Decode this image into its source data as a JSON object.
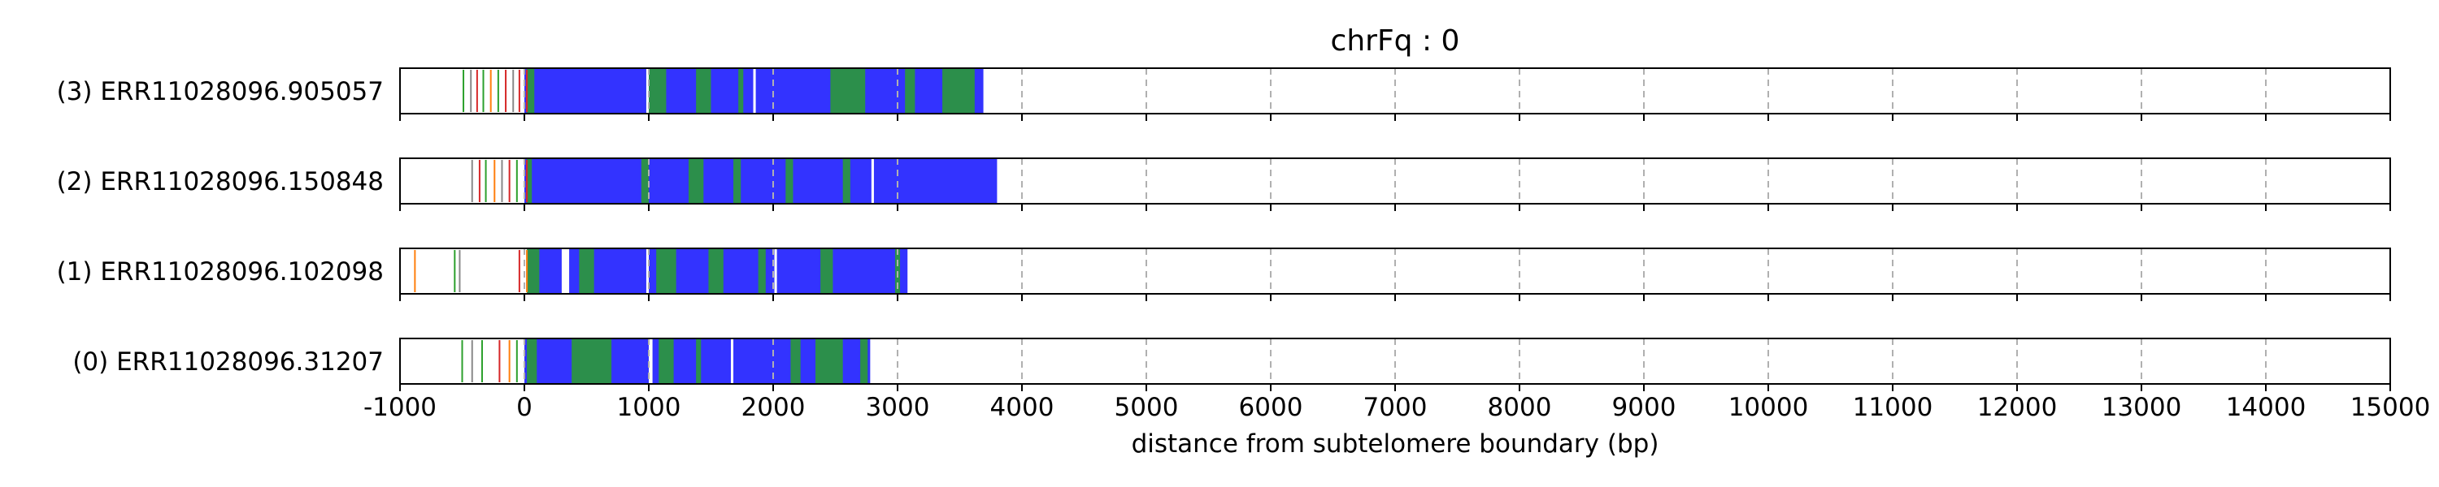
{
  "chart_data": {
    "type": "read-track",
    "title": "chrFq : 0",
    "xlabel": "distance from subtelomere boundary (bp)",
    "xlim": [
      -1000,
      15000
    ],
    "xticks": [
      -1000,
      0,
      1000,
      2000,
      3000,
      4000,
      5000,
      6000,
      7000,
      8000,
      9000,
      10000,
      11000,
      12000,
      13000,
      14000,
      15000
    ],
    "grid": "vertical dashed",
    "colors": {
      "blue": "#3333ff",
      "green": "#2ca02c",
      "red": "#d62728",
      "orange": "#ff7f0e",
      "gray": "#888888"
    },
    "reads": [
      {
        "label": "(3) ERR11028096.905057",
        "end": 3690,
        "marks": [
          {
            "x": -490,
            "color": "green"
          },
          {
            "x": -430,
            "color": "gray"
          },
          {
            "x": -380,
            "color": "red"
          },
          {
            "x": -330,
            "color": "green"
          },
          {
            "x": -270,
            "color": "orange"
          },
          {
            "x": -210,
            "color": "green"
          },
          {
            "x": -150,
            "color": "red"
          },
          {
            "x": -90,
            "color": "gray"
          },
          {
            "x": -40,
            "color": "red"
          },
          {
            "x": 20,
            "color": "red"
          }
        ],
        "green_bands": [
          [
            20,
            80
          ],
          [
            980,
            1140
          ],
          [
            1380,
            1500
          ],
          [
            1720,
            1760
          ],
          [
            2460,
            2740
          ],
          [
            3060,
            3140
          ],
          [
            3360,
            3620
          ]
        ],
        "white_gaps": [
          [
            980,
            1000
          ],
          [
            1840,
            1860
          ]
        ]
      },
      {
        "label": "(2) ERR11028096.150848",
        "end": 3800,
        "marks": [
          {
            "x": -420,
            "color": "gray"
          },
          {
            "x": -360,
            "color": "red"
          },
          {
            "x": -310,
            "color": "green"
          },
          {
            "x": -240,
            "color": "orange"
          },
          {
            "x": -180,
            "color": "gray"
          },
          {
            "x": -120,
            "color": "red"
          },
          {
            "x": -60,
            "color": "green"
          },
          {
            "x": 20,
            "color": "red"
          }
        ],
        "green_bands": [
          [
            20,
            60
          ],
          [
            940,
            1000
          ],
          [
            1320,
            1440
          ],
          [
            1680,
            1740
          ],
          [
            2100,
            2160
          ],
          [
            2560,
            2620
          ]
        ],
        "white_gaps": [
          [
            2790,
            2810
          ]
        ]
      },
      {
        "label": "(1) ERR11028096.102098",
        "end": 3080,
        "marks": [
          {
            "x": -880,
            "color": "orange"
          },
          {
            "x": -560,
            "color": "green"
          },
          {
            "x": -520,
            "color": "gray"
          },
          {
            "x": -40,
            "color": "red"
          },
          {
            "x": 20,
            "color": "orange"
          }
        ],
        "green_bands": [
          [
            20,
            120
          ],
          [
            440,
            560
          ],
          [
            1060,
            1220
          ],
          [
            1480,
            1600
          ],
          [
            1880,
            1940
          ],
          [
            2380,
            2480
          ],
          [
            2980,
            3020
          ]
        ],
        "white_gaps": [
          [
            -20,
            20
          ],
          [
            300,
            360
          ],
          [
            980,
            1000
          ],
          [
            2010,
            2030
          ]
        ]
      },
      {
        "label": "(0) ERR11028096.31207",
        "end": 2780,
        "marks": [
          {
            "x": -500,
            "color": "green"
          },
          {
            "x": -420,
            "color": "gray"
          },
          {
            "x": -340,
            "color": "green"
          },
          {
            "x": -200,
            "color": "red"
          },
          {
            "x": -120,
            "color": "orange"
          },
          {
            "x": -60,
            "color": "green"
          }
        ],
        "green_bands": [
          [
            20,
            100
          ],
          [
            380,
            700
          ],
          [
            1080,
            1200
          ],
          [
            1380,
            1420
          ],
          [
            2140,
            2220
          ],
          [
            2340,
            2560
          ],
          [
            2700,
            2760
          ]
        ],
        "white_gaps": [
          [
            1000,
            1030
          ],
          [
            1660,
            1680
          ]
        ]
      }
    ]
  }
}
